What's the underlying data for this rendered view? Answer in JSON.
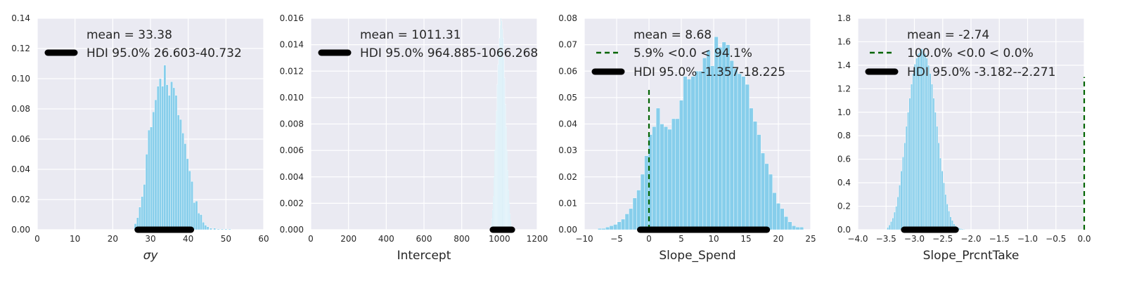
{
  "figure": {
    "background": "#ffffff",
    "plot_bg": "#eaeaf2",
    "grid_color": "#ffffff"
  },
  "chart_data": [
    {
      "type": "bar",
      "xlabel": "σy",
      "xlim": [
        0,
        60
      ],
      "ylim": [
        0,
        0.14
      ],
      "xticks": [
        "0",
        "10",
        "20",
        "30",
        "40",
        "50",
        "60"
      ],
      "yticks": [
        "0.00",
        "0.02",
        "0.04",
        "0.06",
        "0.08",
        "0.10",
        "0.12",
        "0.14"
      ],
      "bar_color": "#87ceeb",
      "bin_width": 0.6,
      "hist": {
        "x": [
          26.0,
          26.6,
          27.2,
          27.8,
          28.4,
          29.0,
          29.6,
          30.2,
          30.8,
          31.4,
          32.0,
          32.6,
          33.2,
          33.8,
          34.4,
          35.0,
          35.6,
          36.2,
          36.8,
          37.4,
          38.0,
          38.6,
          39.2,
          39.8,
          40.4,
          41.0,
          41.6,
          42.2,
          42.8,
          43.4,
          44.0,
          44.6,
          45.2,
          46.0,
          47.0,
          48.0,
          49.0,
          50.0,
          51.0
        ],
        "values": [
          0.004,
          0.008,
          0.015,
          0.022,
          0.03,
          0.05,
          0.066,
          0.068,
          0.078,
          0.086,
          0.095,
          0.1,
          0.095,
          0.109,
          0.096,
          0.089,
          0.098,
          0.094,
          0.089,
          0.076,
          0.073,
          0.064,
          0.057,
          0.047,
          0.039,
          0.032,
          0.018,
          0.019,
          0.011,
          0.01,
          0.005,
          0.003,
          0.002,
          0.001,
          0.001,
          0.0005,
          0.0005,
          0.0005,
          0.0005
        ]
      },
      "hdi": {
        "from": 26.603,
        "to": 40.732
      },
      "mean_label": "mean = 33.38",
      "hdi_label": "HDI 95.0% 26.603-40.732"
    },
    {
      "type": "bar",
      "xlabel": "Intercept",
      "xlim": [
        0,
        1200
      ],
      "ylim": [
        0,
        0.016
      ],
      "xticks": [
        "0",
        "200",
        "400",
        "600",
        "800",
        "1000",
        "1200"
      ],
      "yticks": [
        "0.000",
        "0.002",
        "0.004",
        "0.006",
        "0.008",
        "0.010",
        "0.012",
        "0.014",
        "0.016"
      ],
      "bar_color": "#c9e8f5",
      "bin_width": 4,
      "hist": {
        "x": [
          956,
          960,
          964,
          968,
          972,
          976,
          980,
          984,
          988,
          992,
          996,
          1000,
          1004,
          1008,
          1012,
          1016,
          1020,
          1024,
          1028,
          1032,
          1036,
          1040,
          1044,
          1048,
          1052,
          1056,
          1060,
          1064,
          1068
        ],
        "values": [
          0.0003,
          0.0008,
          0.0015,
          0.0025,
          0.004,
          0.006,
          0.0075,
          0.009,
          0.011,
          0.0125,
          0.0135,
          0.0145,
          0.0155,
          0.016,
          0.0158,
          0.0152,
          0.0145,
          0.013,
          0.0115,
          0.0095,
          0.0078,
          0.006,
          0.0045,
          0.003,
          0.002,
          0.0012,
          0.0007,
          0.0003,
          0.0001
        ]
      },
      "hdi": {
        "from": 964.885,
        "to": 1066.268
      },
      "mean_label": "mean = 1011.31",
      "hdi_label": "HDI 95.0% 964.885-1066.268"
    },
    {
      "type": "bar",
      "xlabel": "Slope_Spend",
      "xlim": [
        -10,
        25
      ],
      "ylim": [
        0,
        0.08
      ],
      "xticks": [
        "−10",
        "−5",
        "0",
        "5",
        "10",
        "15",
        "20",
        "25"
      ],
      "yticks": [
        "0.00",
        "0.01",
        "0.02",
        "0.03",
        "0.04",
        "0.05",
        "0.06",
        "0.07",
        "0.08"
      ],
      "bar_color": "#87ceeb",
      "bin_width": 0.6,
      "hist": {
        "x": [
          -7.6,
          -7.0,
          -6.4,
          -5.8,
          -5.2,
          -4.6,
          -4.0,
          -3.4,
          -2.8,
          -2.2,
          -1.6,
          -1.0,
          -0.4,
          0.2,
          0.8,
          1.4,
          2.0,
          2.6,
          3.2,
          3.8,
          4.4,
          5.0,
          5.6,
          6.2,
          6.8,
          7.4,
          8.0,
          8.6,
          9.2,
          9.8,
          10.4,
          11.0,
          11.6,
          12.2,
          12.8,
          13.4,
          14.0,
          14.6,
          15.2,
          15.8,
          16.4,
          17.0,
          17.6,
          18.2,
          18.8,
          19.4,
          20.0,
          20.6,
          21.2,
          21.8,
          22.4,
          23.0,
          23.6
        ],
        "values": [
          0.0005,
          0.0005,
          0.001,
          0.0015,
          0.002,
          0.003,
          0.004,
          0.006,
          0.008,
          0.012,
          0.015,
          0.021,
          0.028,
          0.036,
          0.039,
          0.046,
          0.04,
          0.039,
          0.038,
          0.042,
          0.042,
          0.049,
          0.058,
          0.057,
          0.058,
          0.06,
          0.06,
          0.065,
          0.068,
          0.062,
          0.073,
          0.069,
          0.071,
          0.07,
          0.064,
          0.061,
          0.059,
          0.058,
          0.055,
          0.046,
          0.041,
          0.036,
          0.029,
          0.025,
          0.021,
          0.014,
          0.01,
          0.008,
          0.005,
          0.003,
          0.0015,
          0.001,
          0.001
        ]
      },
      "hdi": {
        "from": -1.357,
        "to": 18.225
      },
      "comp_line": {
        "x": 0.0,
        "top": 0.054
      },
      "mean_label": "mean = 8.68",
      "comp_label": "5.9% <0.0 < 94.1%",
      "hdi_label": "HDI 95.0% -1.357-18.225"
    },
    {
      "type": "bar",
      "xlabel": "Slope_PrcntTake",
      "xlim": [
        -4.0,
        0.0
      ],
      "ylim": [
        0,
        1.8
      ],
      "xticks": [
        "−4.0",
        "−3.5",
        "−3.0",
        "−2.5",
        "−2.0",
        "−1.5",
        "−1.0",
        "−0.5",
        "0.0"
      ],
      "yticks": [
        "0.0",
        "0.2",
        "0.4",
        "0.6",
        "0.8",
        "1.0",
        "1.2",
        "1.4",
        "1.6",
        "1.8"
      ],
      "bar_color": "#87ceeb",
      "bin_width": 0.03,
      "hist": {
        "x": [
          -3.47,
          -3.44,
          -3.41,
          -3.38,
          -3.35,
          -3.32,
          -3.29,
          -3.26,
          -3.23,
          -3.2,
          -3.17,
          -3.14,
          -3.11,
          -3.08,
          -3.05,
          -3.02,
          -2.99,
          -2.96,
          -2.93,
          -2.9,
          -2.87,
          -2.84,
          -2.81,
          -2.78,
          -2.75,
          -2.72,
          -2.69,
          -2.66,
          -2.63,
          -2.6,
          -2.57,
          -2.54,
          -2.51,
          -2.48,
          -2.45,
          -2.42,
          -2.39,
          -2.36,
          -2.33,
          -2.3,
          -2.27,
          -2.24,
          -2.21,
          -2.18,
          -2.15,
          -2.12,
          -2.09
        ],
        "values": [
          0.02,
          0.04,
          0.07,
          0.1,
          0.15,
          0.2,
          0.28,
          0.38,
          0.5,
          0.62,
          0.74,
          0.88,
          1.0,
          1.12,
          1.24,
          1.33,
          1.41,
          1.46,
          1.5,
          1.51,
          1.54,
          1.52,
          1.5,
          1.46,
          1.4,
          1.33,
          1.24,
          1.12,
          1.0,
          0.88,
          0.74,
          0.61,
          0.5,
          0.4,
          0.3,
          0.22,
          0.16,
          0.11,
          0.08,
          0.05,
          0.035,
          0.025,
          0.015,
          0.01,
          0.006,
          0.004,
          0.002
        ]
      },
      "hdi": {
        "from": -3.182,
        "to": -2.271
      },
      "comp_line": {
        "x": 0.0,
        "top": 1.3
      },
      "mean_label": "mean = -2.74",
      "comp_label": "100.0% <0.0 < 0.0%",
      "hdi_label": "HDI 95.0% -3.182--2.271"
    }
  ]
}
